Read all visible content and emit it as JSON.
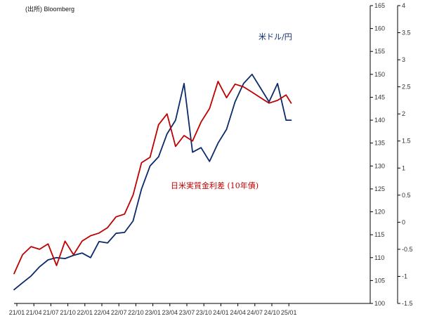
{
  "source_note": "(出所) Bloomberg",
  "chart_data": {
    "type": "line",
    "x_categories": [
      "21/01",
      "21/04",
      "21/07",
      "21/10",
      "22/01",
      "22/04",
      "22/07",
      "22/10",
      "23/01",
      "23/04",
      "23/07",
      "23/10",
      "24/01",
      "24/04",
      "24/07",
      "24/10",
      "25/01"
    ],
    "left_axis": {
      "min": 100,
      "max": 165,
      "ticks": [
        100,
        105,
        110,
        115,
        120,
        125,
        130,
        135,
        140,
        145,
        150,
        155,
        160,
        165
      ]
    },
    "right_axis": {
      "min": -1.5,
      "max": 4,
      "ticks": [
        "-1.5",
        "-1",
        "-0.5",
        "0",
        "0.5",
        "1",
        "1.5",
        "2",
        "2.5",
        "3",
        "3.5",
        "4"
      ]
    },
    "series": [
      {
        "name": "米ドル/円",
        "axis": "left",
        "color": "#0b2a6b",
        "x": [
          0,
          0.5,
          1,
          1.5,
          2,
          2.5,
          3,
          3.5,
          4,
          4.5,
          5,
          5.5,
          6,
          6.5,
          7,
          7.5,
          8,
          8.5,
          9,
          9.5,
          10,
          10.5,
          11,
          11.5,
          12,
          12.5,
          13,
          13.5,
          14,
          14.5,
          15,
          15.5,
          16,
          16.3
        ],
        "values": [
          103,
          104.5,
          106,
          108,
          109.5,
          110,
          109.8,
          110.5,
          111,
          110,
          113.5,
          113.2,
          115.3,
          115.5,
          118,
          125,
          130,
          132,
          137,
          140,
          148,
          133,
          134,
          131,
          135,
          138,
          144,
          148,
          150,
          147,
          144,
          148,
          140,
          140
        ]
      },
      {
        "name": "日米実質金利差（10年債）",
        "axis": "right",
        "color": "#c00000",
        "x": [
          0,
          0.5,
          1,
          1.5,
          2,
          2.5,
          3,
          3.5,
          4,
          4.5,
          5,
          5.5,
          6,
          6.5,
          7,
          7.5,
          8,
          8.5,
          9,
          9.5,
          10,
          10.5,
          11,
          11.5,
          12,
          12.5,
          13,
          13.5,
          14,
          14.5,
          15,
          15.5,
          16,
          16.3
        ],
        "values": [
          -0.95,
          -0.6,
          -0.45,
          -0.5,
          -0.4,
          -0.8,
          -0.35,
          -0.6,
          -0.35,
          -0.25,
          -0.2,
          -0.1,
          0.1,
          0.15,
          0.5,
          1.1,
          1.2,
          1.8,
          2.0,
          1.4,
          1.6,
          1.5,
          1.85,
          2.1,
          2.6,
          2.3,
          2.55,
          2.5,
          2.4,
          2.3,
          2.2,
          2.25,
          2.35,
          2.2
        ]
      }
    ],
    "annotations": [
      "米ドル/円",
      "日米実質金利差 (10年債)"
    ]
  }
}
